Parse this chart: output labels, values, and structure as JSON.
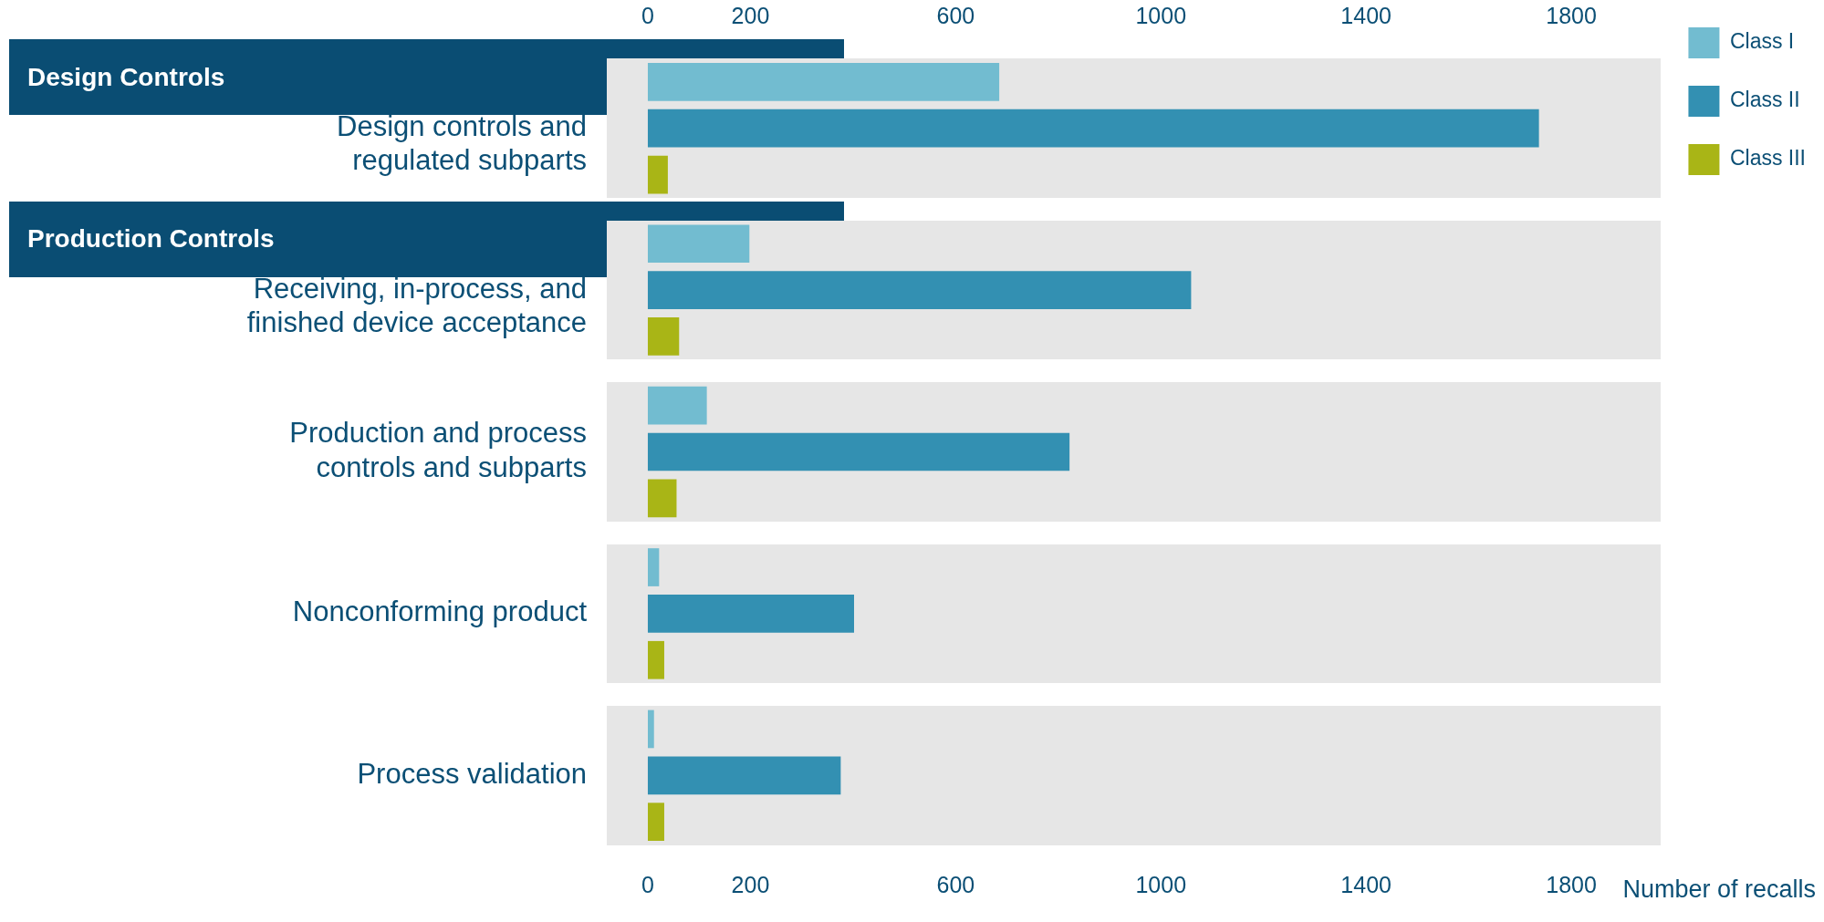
{
  "chart_data": {
    "type": "bar",
    "orientation": "horizontal",
    "xlabel": "Number of recalls",
    "categories": [
      "Design controls and regulated subparts",
      "Receiving, in-process, and finished device acceptance",
      "Production and process controls and subparts",
      "Nonconforming product",
      "Process validation"
    ],
    "series": [
      {
        "name": "Class I",
        "color": "#72bcd0",
        "values": [
          685,
          198,
          115,
          22,
          12
        ]
      },
      {
        "name": "Class II",
        "color": "#3390b2",
        "values": [
          1737,
          1059,
          822,
          402,
          376
        ]
      },
      {
        "name": "Class III",
        "color": "#a9b516",
        "values": [
          39,
          61,
          56,
          32,
          32
        ]
      }
    ],
    "xlim": [
      -80,
      1975
    ],
    "xticks": [
      0,
      200,
      600,
      1000,
      1400,
      1800
    ],
    "x2lim": [
      -80,
      1975
    ],
    "x2ticks": [
      0,
      200,
      600,
      1000,
      1400,
      1800
    ],
    "annotations": [
      "Design Controls",
      "Production Controls"
    ],
    "legend": "top right",
    "grid": false
  }
}
